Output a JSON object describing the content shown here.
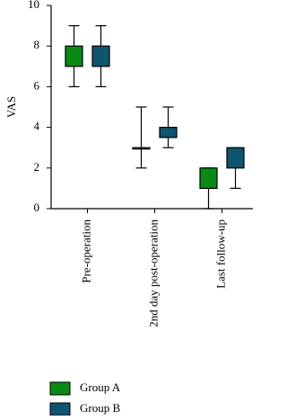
{
  "chart_data": {
    "type": "box",
    "y_label": "VAS",
    "categories": [
      "Pre-operation",
      "2nd day post-operation",
      "Last follow-up"
    ],
    "ylim": [
      0,
      10
    ],
    "yticks": [
      0,
      2,
      4,
      6,
      8,
      10
    ],
    "series": [
      {
        "name": "Group A",
        "color": "#0a8a14",
        "boxes": [
          {
            "min": 6,
            "q1": 7,
            "q3": 8,
            "max": 9
          },
          {
            "min": 2,
            "q1": 3,
            "q3": 3,
            "max": 5
          },
          {
            "min": 0,
            "q1": 1,
            "q3": 2,
            "max": 2
          }
        ]
      },
      {
        "name": "Group B",
        "color": "#0f5470",
        "boxes": [
          {
            "min": 6,
            "q1": 7,
            "q3": 8,
            "max": 9
          },
          {
            "min": 3,
            "q1": 3.5,
            "q3": 4,
            "max": 5
          },
          {
            "min": 1,
            "q1": 2,
            "q3": 3,
            "max": 3
          }
        ]
      }
    ]
  }
}
